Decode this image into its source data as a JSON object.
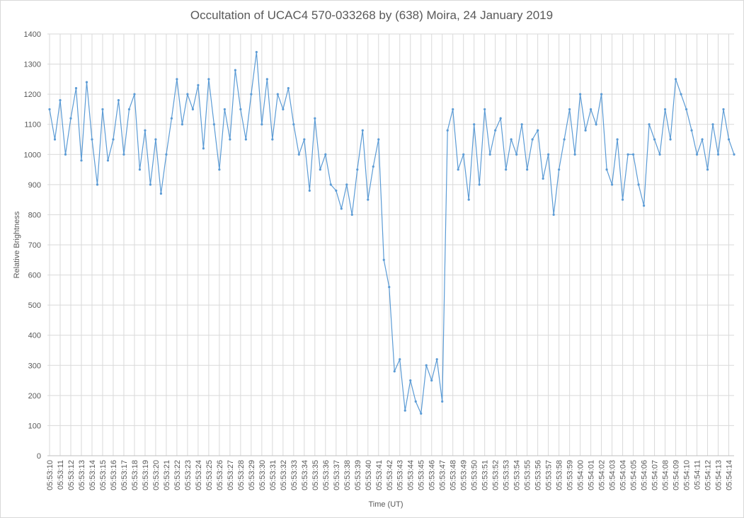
{
  "chart_data": {
    "type": "line",
    "title": "Occultation of UCAC4 570-033268 by (638) Moira, 24 January 2019",
    "x_label": "Time (UT)",
    "y_label": "Relative Brightness",
    "grid": true,
    "ylim": [
      0,
      1400
    ],
    "yticks": [
      0,
      100,
      200,
      300,
      400,
      500,
      600,
      700,
      800,
      900,
      1000,
      1100,
      1200,
      1300,
      1400
    ],
    "xlim": [
      21189.8,
      21254.5
    ],
    "xticks": [
      {
        "value": 21190,
        "label": "05:53:10"
      },
      {
        "value": 21191,
        "label": "05:53:11"
      },
      {
        "value": 21192,
        "label": "05:53:12"
      },
      {
        "value": 21193,
        "label": "05:53:13"
      },
      {
        "value": 21194,
        "label": "05:53:14"
      },
      {
        "value": 21195,
        "label": "05:53:15"
      },
      {
        "value": 21196,
        "label": "05:53:16"
      },
      {
        "value": 21197,
        "label": "05:53:17"
      },
      {
        "value": 21198,
        "label": "05:53:18"
      },
      {
        "value": 21199,
        "label": "05:53:19"
      },
      {
        "value": 21200,
        "label": "05:53:20"
      },
      {
        "value": 21201,
        "label": "05:53:21"
      },
      {
        "value": 21202,
        "label": "05:53:22"
      },
      {
        "value": 21203,
        "label": "05:53:23"
      },
      {
        "value": 21204,
        "label": "05:53:24"
      },
      {
        "value": 21205,
        "label": "05:53:25"
      },
      {
        "value": 21206,
        "label": "05:53:26"
      },
      {
        "value": 21207,
        "label": "05:53:27"
      },
      {
        "value": 21208,
        "label": "05:53:28"
      },
      {
        "value": 21209,
        "label": "05:53:29"
      },
      {
        "value": 21210,
        "label": "05:53:30"
      },
      {
        "value": 21211,
        "label": "05:53:31"
      },
      {
        "value": 21212,
        "label": "05:53:32"
      },
      {
        "value": 21213,
        "label": "05:53:33"
      },
      {
        "value": 21214,
        "label": "05:53:34"
      },
      {
        "value": 21215,
        "label": "05:53:35"
      },
      {
        "value": 21216,
        "label": "05:53:36"
      },
      {
        "value": 21217,
        "label": "05:53:37"
      },
      {
        "value": 21218,
        "label": "05:53:38"
      },
      {
        "value": 21219,
        "label": "05:53:39"
      },
      {
        "value": 21220,
        "label": "05:53:40"
      },
      {
        "value": 21221,
        "label": "05:53:41"
      },
      {
        "value": 21222,
        "label": "05:53:42"
      },
      {
        "value": 21223,
        "label": "05:53:43"
      },
      {
        "value": 21224,
        "label": "05:53:44"
      },
      {
        "value": 21225,
        "label": "05:53:45"
      },
      {
        "value": 21226,
        "label": "05:53:46"
      },
      {
        "value": 21227,
        "label": "05:53:47"
      },
      {
        "value": 21228,
        "label": "05:53:48"
      },
      {
        "value": 21229,
        "label": "05:53:49"
      },
      {
        "value": 21230,
        "label": "05:53:50"
      },
      {
        "value": 21231,
        "label": "05:53:51"
      },
      {
        "value": 21232,
        "label": "05:53:52"
      },
      {
        "value": 21233,
        "label": "05:53:53"
      },
      {
        "value": 21234,
        "label": "05:53:54"
      },
      {
        "value": 21235,
        "label": "05:53:55"
      },
      {
        "value": 21236,
        "label": "05:53:56"
      },
      {
        "value": 21237,
        "label": "05:53:57"
      },
      {
        "value": 21238,
        "label": "05:53:58"
      },
      {
        "value": 21239,
        "label": "05:53:59"
      },
      {
        "value": 21240,
        "label": "05:54:00"
      },
      {
        "value": 21241,
        "label": "05:54:01"
      },
      {
        "value": 21242,
        "label": "05:54:02"
      },
      {
        "value": 21243,
        "label": "05:54:03"
      },
      {
        "value": 21244,
        "label": "05:54:04"
      },
      {
        "value": 21245,
        "label": "05:54:05"
      },
      {
        "value": 21246,
        "label": "05:54:06"
      },
      {
        "value": 21247,
        "label": "05:54:07"
      },
      {
        "value": 21248,
        "label": "05:54:08"
      },
      {
        "value": 21249,
        "label": "05:54:09"
      },
      {
        "value": 21250,
        "label": "05:54:10"
      },
      {
        "value": 21251,
        "label": "05:54:11"
      },
      {
        "value": 21252,
        "label": "05:54:12"
      },
      {
        "value": 21253,
        "label": "05:54:13"
      },
      {
        "value": 21254,
        "label": "05:54:14"
      }
    ],
    "x": [
      21190,
      21190.5,
      21191,
      21191.5,
      21192,
      21192.5,
      21193,
      21193.5,
      21194,
      21194.5,
      21195,
      21195.5,
      21196,
      21196.5,
      21197,
      21197.5,
      21198,
      21198.5,
      21199,
      21199.5,
      21200,
      21200.5,
      21201,
      21201.5,
      21202,
      21202.5,
      21203,
      21203.5,
      21204,
      21204.5,
      21205,
      21205.5,
      21206,
      21206.5,
      21207,
      21207.5,
      21208,
      21208.5,
      21209,
      21209.5,
      21210,
      21210.5,
      21211,
      21211.5,
      21212,
      21212.5,
      21213,
      21213.5,
      21214,
      21214.5,
      21215,
      21215.5,
      21216,
      21216.5,
      21217,
      21217.5,
      21218,
      21218.5,
      21219,
      21219.5,
      21220,
      21220.5,
      21221,
      21221.5,
      21222,
      21222.5,
      21223,
      21223.5,
      21224,
      21224.5,
      21225,
      21225.5,
      21226,
      21226.5,
      21227,
      21227.5,
      21228,
      21228.5,
      21229,
      21229.5,
      21230,
      21230.5,
      21231,
      21231.5,
      21232,
      21232.5,
      21233,
      21233.5,
      21234,
      21234.5,
      21235,
      21235.5,
      21236,
      21236.5,
      21237,
      21237.5,
      21238,
      21238.5,
      21239,
      21239.5,
      21240,
      21240.5,
      21241,
      21241.5,
      21242,
      21242.5,
      21243,
      21243.5,
      21244,
      21244.5,
      21245,
      21245.5,
      21246,
      21246.5,
      21247,
      21247.5,
      21248,
      21248.5,
      21249,
      21249.5,
      21250,
      21250.5,
      21251,
      21251.5,
      21252,
      21252.5,
      21253,
      21253.5,
      21254,
      21254.5
    ],
    "series": [
      {
        "color": "#5b9bd5",
        "values": [
          1150,
          1050,
          1180,
          1000,
          1120,
          1220,
          980,
          1240,
          1050,
          900,
          1150,
          980,
          1050,
          1180,
          1000,
          1150,
          1200,
          950,
          1080,
          900,
          1050,
          870,
          1000,
          1120,
          1250,
          1100,
          1200,
          1150,
          1230,
          1020,
          1250,
          1100,
          950,
          1150,
          1050,
          1280,
          1150,
          1050,
          1200,
          1340,
          1100,
          1250,
          1050,
          1200,
          1150,
          1220,
          1100,
          1000,
          1050,
          880,
          1120,
          950,
          1000,
          900,
          880,
          820,
          900,
          800,
          950,
          1080,
          850,
          960,
          1050,
          650,
          560,
          280,
          320,
          150,
          250,
          180,
          140,
          300,
          250,
          320,
          180,
          1080,
          1150,
          950,
          1000,
          850,
          1100,
          900,
          1150,
          1000,
          1080,
          1120,
          950,
          1050,
          1000,
          1100,
          950,
          1050,
          1080,
          920,
          1000,
          800,
          950,
          1050,
          1150,
          1000,
          1200,
          1080,
          1150,
          1100,
          1200,
          950,
          900,
          1050,
          850,
          1000,
          1000,
          900,
          830,
          1100,
          1050,
          1000,
          1150,
          1050,
          1250,
          1200,
          1150,
          1080,
          1000,
          1050,
          950,
          1100,
          1000,
          1150,
          1050,
          1000
        ]
      }
    ]
  }
}
